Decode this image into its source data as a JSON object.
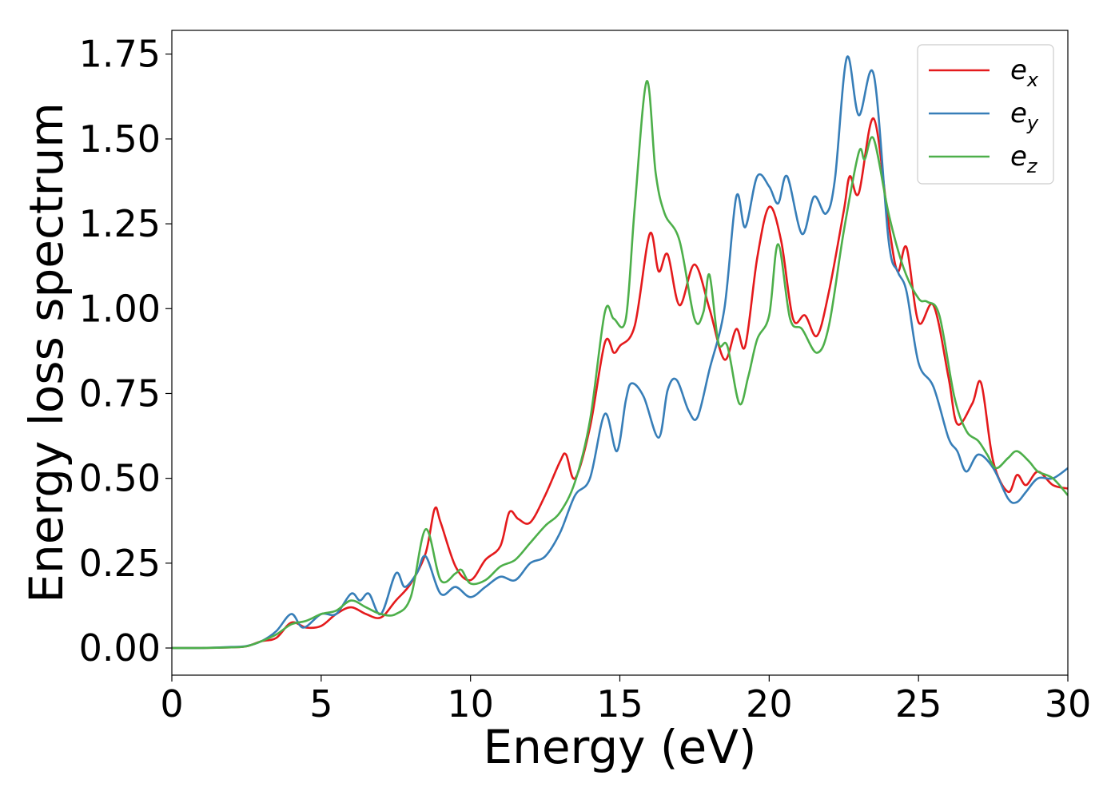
{
  "chart_data": {
    "type": "line",
    "title": "",
    "xlabel": "Energy (eV)",
    "ylabel": "Energy loss spectrum",
    "xlim": [
      0,
      30
    ],
    "ylim": [
      -0.08,
      1.82
    ],
    "xticks": [
      0,
      5,
      10,
      15,
      20,
      25,
      30
    ],
    "xtick_labels": [
      "0",
      "5",
      "10",
      "15",
      "20",
      "25",
      "30"
    ],
    "yticks": [
      0,
      0.25,
      0.5,
      0.75,
      1.0,
      1.25,
      1.5,
      1.75
    ],
    "ytick_labels": [
      "0.00",
      "0.25",
      "0.50",
      "0.75",
      "1.00",
      "1.25",
      "1.50",
      "1.75"
    ],
    "grid": false,
    "legend_position": "top-right",
    "series": [
      {
        "name": "e",
        "subscript": "x",
        "color": "#e41a1c",
        "points": [
          [
            0,
            0
          ],
          [
            1,
            0
          ],
          [
            2,
            0.002
          ],
          [
            2.5,
            0.005
          ],
          [
            3,
            0.02
          ],
          [
            3.5,
            0.03
          ],
          [
            4,
            0.075
          ],
          [
            4.5,
            0.06
          ],
          [
            5,
            0.065
          ],
          [
            5.5,
            0.1
          ],
          [
            6,
            0.12
          ],
          [
            6.5,
            0.1
          ],
          [
            7,
            0.09
          ],
          [
            7.5,
            0.14
          ],
          [
            8,
            0.19
          ],
          [
            8.5,
            0.28
          ],
          [
            8.8,
            0.41
          ],
          [
            9,
            0.37
          ],
          [
            9.5,
            0.24
          ],
          [
            10,
            0.2
          ],
          [
            10.5,
            0.26
          ],
          [
            11,
            0.3
          ],
          [
            11.3,
            0.4
          ],
          [
            11.6,
            0.38
          ],
          [
            12,
            0.37
          ],
          [
            12.5,
            0.45
          ],
          [
            13,
            0.55
          ],
          [
            13.2,
            0.57
          ],
          [
            13.5,
            0.5
          ],
          [
            14,
            0.65
          ],
          [
            14.5,
            0.9
          ],
          [
            14.8,
            0.87
          ],
          [
            15,
            0.89
          ],
          [
            15.5,
            0.95
          ],
          [
            16,
            1.22
          ],
          [
            16.3,
            1.11
          ],
          [
            16.6,
            1.16
          ],
          [
            17,
            1.01
          ],
          [
            17.5,
            1.13
          ],
          [
            18,
            1.0
          ],
          [
            18.5,
            0.85
          ],
          [
            18.9,
            0.94
          ],
          [
            19.2,
            0.89
          ],
          [
            19.6,
            1.15
          ],
          [
            20,
            1.3
          ],
          [
            20.4,
            1.2
          ],
          [
            20.8,
            0.97
          ],
          [
            21.2,
            0.98
          ],
          [
            21.6,
            0.92
          ],
          [
            22,
            1.05
          ],
          [
            22.5,
            1.29
          ],
          [
            22.7,
            1.39
          ],
          [
            23,
            1.34
          ],
          [
            23.5,
            1.56
          ],
          [
            24,
            1.25
          ],
          [
            24.3,
            1.11
          ],
          [
            24.6,
            1.18
          ],
          [
            25,
            0.96
          ],
          [
            25.5,
            1.01
          ],
          [
            26,
            0.8
          ],
          [
            26.3,
            0.66
          ],
          [
            26.8,
            0.72
          ],
          [
            27.1,
            0.78
          ],
          [
            27.5,
            0.55
          ],
          [
            28,
            0.46
          ],
          [
            28.3,
            0.51
          ],
          [
            28.6,
            0.48
          ],
          [
            29,
            0.52
          ],
          [
            29.5,
            0.48
          ],
          [
            30,
            0.47
          ]
        ]
      },
      {
        "name": "e",
        "subscript": "y",
        "color": "#377eb8",
        "points": [
          [
            0,
            0
          ],
          [
            1,
            0
          ],
          [
            2,
            0.003
          ],
          [
            2.5,
            0.006
          ],
          [
            3,
            0.02
          ],
          [
            3.5,
            0.05
          ],
          [
            4,
            0.1
          ],
          [
            4.4,
            0.06
          ],
          [
            5,
            0.1
          ],
          [
            5.5,
            0.1
          ],
          [
            6,
            0.16
          ],
          [
            6.3,
            0.14
          ],
          [
            6.6,
            0.16
          ],
          [
            7,
            0.1
          ],
          [
            7.5,
            0.22
          ],
          [
            7.8,
            0.18
          ],
          [
            8.2,
            0.22
          ],
          [
            8.5,
            0.27
          ],
          [
            9,
            0.16
          ],
          [
            9.5,
            0.18
          ],
          [
            10,
            0.15
          ],
          [
            10.5,
            0.18
          ],
          [
            11,
            0.21
          ],
          [
            11.5,
            0.2
          ],
          [
            12,
            0.25
          ],
          [
            12.5,
            0.27
          ],
          [
            13,
            0.34
          ],
          [
            13.5,
            0.45
          ],
          [
            14,
            0.5
          ],
          [
            14.5,
            0.69
          ],
          [
            14.9,
            0.58
          ],
          [
            15.2,
            0.73
          ],
          [
            15.4,
            0.78
          ],
          [
            15.8,
            0.74
          ],
          [
            16.3,
            0.62
          ],
          [
            16.6,
            0.76
          ],
          [
            16.9,
            0.79
          ],
          [
            17.3,
            0.7
          ],
          [
            17.6,
            0.68
          ],
          [
            18,
            0.82
          ],
          [
            18.5,
            1.0
          ],
          [
            18.9,
            1.33
          ],
          [
            19.2,
            1.24
          ],
          [
            19.6,
            1.39
          ],
          [
            20,
            1.36
          ],
          [
            20.3,
            1.31
          ],
          [
            20.6,
            1.39
          ],
          [
            21.1,
            1.22
          ],
          [
            21.5,
            1.33
          ],
          [
            21.9,
            1.28
          ],
          [
            22.2,
            1.38
          ],
          [
            22.6,
            1.74
          ],
          [
            23,
            1.57
          ],
          [
            23.5,
            1.69
          ],
          [
            24,
            1.2
          ],
          [
            24.3,
            1.11
          ],
          [
            24.6,
            1.05
          ],
          [
            25,
            0.84
          ],
          [
            25.5,
            0.77
          ],
          [
            26,
            0.62
          ],
          [
            26.3,
            0.58
          ],
          [
            26.6,
            0.52
          ],
          [
            27,
            0.57
          ],
          [
            27.5,
            0.53
          ],
          [
            28,
            0.44
          ],
          [
            28.3,
            0.43
          ],
          [
            28.6,
            0.46
          ],
          [
            29,
            0.5
          ],
          [
            29.5,
            0.5
          ],
          [
            30,
            0.53
          ]
        ]
      },
      {
        "name": "e",
        "subscript": "z",
        "color": "#4daf4a",
        "points": [
          [
            0,
            0
          ],
          [
            1,
            0
          ],
          [
            2,
            0.002
          ],
          [
            2.5,
            0.005
          ],
          [
            3,
            0.02
          ],
          [
            3.5,
            0.04
          ],
          [
            4,
            0.07
          ],
          [
            4.5,
            0.08
          ],
          [
            5,
            0.1
          ],
          [
            5.5,
            0.11
          ],
          [
            6,
            0.14
          ],
          [
            6.5,
            0.12
          ],
          [
            7,
            0.1
          ],
          [
            7.5,
            0.1
          ],
          [
            8,
            0.15
          ],
          [
            8.5,
            0.35
          ],
          [
            9,
            0.2
          ],
          [
            9.5,
            0.22
          ],
          [
            9.7,
            0.23
          ],
          [
            10,
            0.19
          ],
          [
            10.5,
            0.2
          ],
          [
            11,
            0.24
          ],
          [
            11.5,
            0.26
          ],
          [
            12,
            0.31
          ],
          [
            12.5,
            0.36
          ],
          [
            13,
            0.4
          ],
          [
            13.5,
            0.49
          ],
          [
            14,
            0.67
          ],
          [
            14.5,
            0.99
          ],
          [
            14.8,
            0.97
          ],
          [
            15.2,
            0.97
          ],
          [
            15.5,
            1.3
          ],
          [
            15.9,
            1.67
          ],
          [
            16.2,
            1.4
          ],
          [
            16.5,
            1.28
          ],
          [
            17,
            1.2
          ],
          [
            17.5,
            0.97
          ],
          [
            17.8,
            0.99
          ],
          [
            18,
            1.1
          ],
          [
            18.3,
            0.9
          ],
          [
            18.6,
            0.89
          ],
          [
            19,
            0.72
          ],
          [
            19.3,
            0.8
          ],
          [
            19.6,
            0.91
          ],
          [
            20,
            0.98
          ],
          [
            20.3,
            1.19
          ],
          [
            20.7,
            0.97
          ],
          [
            21.1,
            0.94
          ],
          [
            21.6,
            0.87
          ],
          [
            22,
            0.95
          ],
          [
            22.5,
            1.23
          ],
          [
            23,
            1.46
          ],
          [
            23.2,
            1.44
          ],
          [
            23.5,
            1.5
          ],
          [
            24,
            1.28
          ],
          [
            24.5,
            1.12
          ],
          [
            25,
            1.03
          ],
          [
            25.3,
            1.02
          ],
          [
            25.7,
            0.98
          ],
          [
            26.2,
            0.74
          ],
          [
            26.6,
            0.64
          ],
          [
            27,
            0.61
          ],
          [
            27.3,
            0.57
          ],
          [
            27.6,
            0.53
          ],
          [
            28,
            0.56
          ],
          [
            28.3,
            0.58
          ],
          [
            28.7,
            0.55
          ],
          [
            29,
            0.52
          ],
          [
            29.5,
            0.5
          ],
          [
            30,
            0.45
          ]
        ]
      }
    ]
  }
}
